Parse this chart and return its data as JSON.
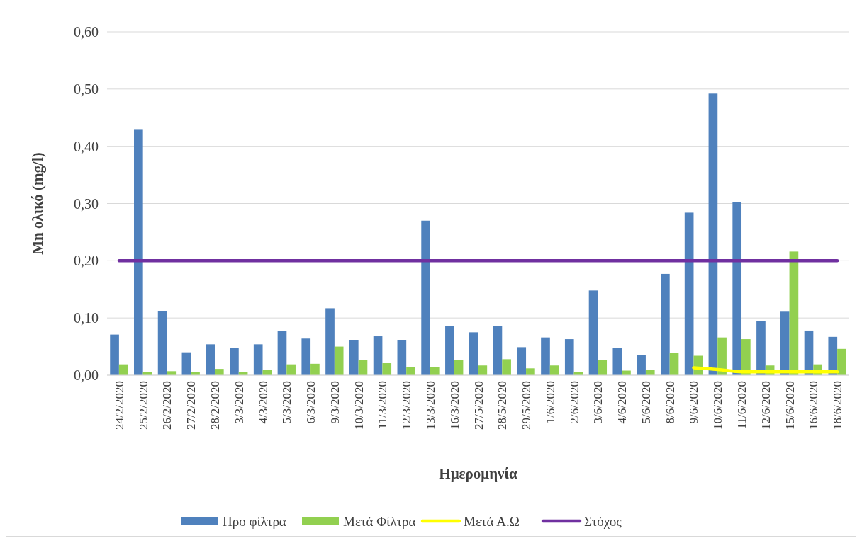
{
  "chart_data": {
    "type": "bar",
    "xlabel": "Ημερομηνία",
    "ylabel": "Mn ολικό (mg/l)",
    "categories": [
      "24/2/2020",
      "25/2/2020",
      "26/2/2020",
      "27/2/2020",
      "28/2/2020",
      "3/3/2020",
      "4/3/2020",
      "5/3/2020",
      "6/3/2020",
      "9/3/2020",
      "10/3/2020",
      "11/3/2020",
      "12/3/2020",
      "13/3/2020",
      "16/3/2020",
      "27/5/2020",
      "28/5/2020",
      "29/5/2020",
      "1/6/2020",
      "2/6/2020",
      "3/6/2020",
      "4/6/2020",
      "5/6/2020",
      "8/6/2020",
      "9/6/2020",
      "10/6/2020",
      "11/6/2020",
      "12/6/2020",
      "15/6/2020",
      "16/6/2020",
      "18/6/2020"
    ],
    "series": [
      {
        "name": "Προ φίλτρα",
        "color": "#4f81bd",
        "values": [
          0.071,
          0.43,
          0.112,
          0.04,
          0.054,
          0.047,
          0.054,
          0.077,
          0.064,
          0.117,
          0.061,
          0.068,
          0.061,
          0.27,
          0.086,
          0.075,
          0.086,
          0.049,
          0.066,
          0.063,
          0.148,
          0.047,
          0.035,
          0.177,
          0.284,
          0.492,
          0.303,
          0.095,
          0.111,
          0.078,
          0.067
        ]
      },
      {
        "name": "Μετά Φίλτρα",
        "color": "#92d050",
        "values": [
          0.019,
          0.005,
          0.007,
          0.005,
          0.011,
          0.005,
          0.009,
          0.019,
          0.02,
          0.05,
          0.027,
          0.021,
          0.014,
          0.014,
          0.027,
          0.017,
          0.028,
          0.012,
          0.017,
          0.005,
          0.027,
          0.008,
          0.009,
          0.039,
          0.034,
          0.066,
          0.063,
          0.017,
          0.216,
          0.019,
          0.046
        ]
      },
      {
        "name": "Μετά Α.Ω",
        "type": "line",
        "color": "#ffff00",
        "values": [
          null,
          null,
          null,
          null,
          null,
          null,
          null,
          null,
          null,
          null,
          null,
          null,
          null,
          null,
          null,
          null,
          null,
          null,
          null,
          null,
          null,
          null,
          null,
          null,
          0.013,
          0.01,
          0.006,
          0.006,
          0.006,
          0.006,
          0.006
        ]
      },
      {
        "name": "Στόχος",
        "type": "line",
        "color": "#7030a0",
        "values": [
          0.2,
          0.2,
          0.2,
          0.2,
          0.2,
          0.2,
          0.2,
          0.2,
          0.2,
          0.2,
          0.2,
          0.2,
          0.2,
          0.2,
          0.2,
          0.2,
          0.2,
          0.2,
          0.2,
          0.2,
          0.2,
          0.2,
          0.2,
          0.2,
          0.2,
          0.2,
          0.2,
          0.2,
          0.2,
          0.2,
          0.2
        ]
      }
    ],
    "ylim": [
      0,
      0.6
    ],
    "yticks": [
      {
        "value": 0,
        "label": "0,00"
      },
      {
        "value": 0.1,
        "label": "0,10"
      },
      {
        "value": 0.2,
        "label": "0,20"
      },
      {
        "value": 0.3,
        "label": "0,30"
      },
      {
        "value": 0.4,
        "label": "0,40"
      },
      {
        "value": 0.5,
        "label": "0,50"
      },
      {
        "value": 0.6,
        "label": "0,60"
      }
    ],
    "grid": "y",
    "legend": "bottom"
  }
}
